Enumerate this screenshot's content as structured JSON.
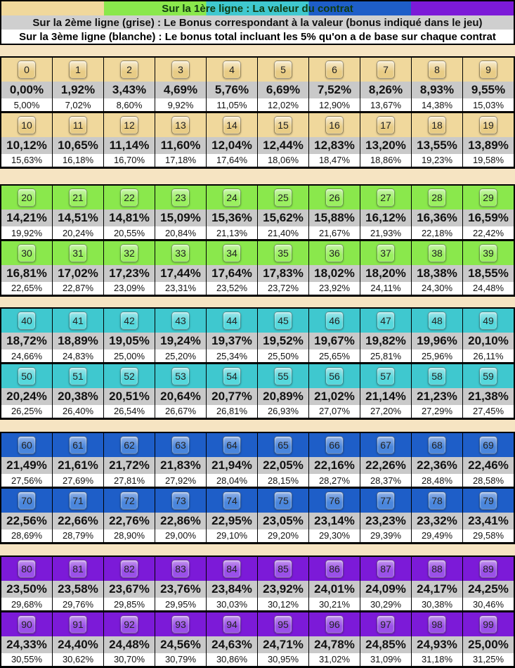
{
  "header": {
    "line1": "Sur la 1ère ligne : La valeur du contrat",
    "line2": "Sur la 2ème ligne (grise) : Le Bonus correspondant à la valeur (bonus indiqué dans le jeu)",
    "line3": "Sur la 3ème ligne (blanche) : Le bonus total incluant les 5% qu'on a de base sur chaque contrat"
  },
  "colors": [
    "#f0d89c",
    "#8ae84c",
    "#3fc8cf",
    "#1e5ec8",
    "#7c1ad8"
  ],
  "badge_colors": [
    "#e8cc86",
    "#9af060",
    "#56d8dc",
    "#4a86dc",
    "#9a50e8"
  ],
  "blocks": [
    {
      "rows": [
        {
          "values": [
            "0",
            "1",
            "2",
            "3",
            "4",
            "5",
            "6",
            "7",
            "8",
            "9"
          ],
          "bonus": [
            "0,00%",
            "1,92%",
            "3,43%",
            "4,69%",
            "5,76%",
            "6,69%",
            "7,52%",
            "8,26%",
            "8,93%",
            "9,55%"
          ],
          "total": [
            "5,00%",
            "7,02%",
            "8,60%",
            "9,92%",
            "11,05%",
            "12,02%",
            "12,90%",
            "13,67%",
            "14,38%",
            "15,03%"
          ]
        },
        {
          "values": [
            "10",
            "11",
            "12",
            "13",
            "14",
            "15",
            "16",
            "17",
            "18",
            "19"
          ],
          "bonus": [
            "10,12%",
            "10,65%",
            "11,14%",
            "11,60%",
            "12,04%",
            "12,44%",
            "12,83%",
            "13,20%",
            "13,55%",
            "13,89%"
          ],
          "total": [
            "15,63%",
            "16,18%",
            "16,70%",
            "17,18%",
            "17,64%",
            "18,06%",
            "18,47%",
            "18,86%",
            "19,23%",
            "19,58%"
          ]
        }
      ]
    },
    {
      "rows": [
        {
          "values": [
            "20",
            "21",
            "22",
            "23",
            "24",
            "25",
            "26",
            "27",
            "28",
            "29"
          ],
          "bonus": [
            "14,21%",
            "14,51%",
            "14,81%",
            "15,09%",
            "15,36%",
            "15,62%",
            "15,88%",
            "16,12%",
            "16,36%",
            "16,59%"
          ],
          "total": [
            "19,92%",
            "20,24%",
            "20,55%",
            "20,84%",
            "21,13%",
            "21,40%",
            "21,67%",
            "21,93%",
            "22,18%",
            "22,42%"
          ]
        },
        {
          "values": [
            "30",
            "31",
            "32",
            "33",
            "34",
            "35",
            "36",
            "37",
            "38",
            "39"
          ],
          "bonus": [
            "16,81%",
            "17,02%",
            "17,23%",
            "17,44%",
            "17,64%",
            "17,83%",
            "18,02%",
            "18,20%",
            "18,38%",
            "18,55%"
          ],
          "total": [
            "22,65%",
            "22,87%",
            "23,09%",
            "23,31%",
            "23,52%",
            "23,72%",
            "23,92%",
            "24,11%",
            "24,30%",
            "24,48%"
          ]
        }
      ]
    },
    {
      "rows": [
        {
          "values": [
            "40",
            "41",
            "42",
            "43",
            "44",
            "45",
            "46",
            "47",
            "48",
            "49"
          ],
          "bonus": [
            "18,72%",
            "18,89%",
            "19,05%",
            "19,24%",
            "19,37%",
            "19,52%",
            "19,67%",
            "19,82%",
            "19,96%",
            "20,10%"
          ],
          "total": [
            "24,66%",
            "24,83%",
            "25,00%",
            "25,20%",
            "25,34%",
            "25,50%",
            "25,65%",
            "25,81%",
            "25,96%",
            "26,11%"
          ]
        },
        {
          "values": [
            "50",
            "51",
            "52",
            "53",
            "54",
            "55",
            "56",
            "57",
            "58",
            "59"
          ],
          "bonus": [
            "20,24%",
            "20,38%",
            "20,51%",
            "20,64%",
            "20,77%",
            "20,89%",
            "21,02%",
            "21,14%",
            "21,23%",
            "21,38%"
          ],
          "total": [
            "26,25%",
            "26,40%",
            "26,54%",
            "26,67%",
            "26,81%",
            "26,93%",
            "27,07%",
            "27,20%",
            "27,29%",
            "27,45%"
          ]
        }
      ]
    },
    {
      "rows": [
        {
          "values": [
            "60",
            "61",
            "62",
            "63",
            "64",
            "65",
            "66",
            "67",
            "68",
            "69"
          ],
          "bonus": [
            "21,49%",
            "21,61%",
            "21,72%",
            "21,83%",
            "21,94%",
            "22,05%",
            "22,16%",
            "22,26%",
            "22,36%",
            "22,46%"
          ],
          "total": [
            "27,56%",
            "27,69%",
            "27,81%",
            "27,92%",
            "28,04%",
            "28,15%",
            "28,27%",
            "28,37%",
            "28,48%",
            "28,58%"
          ]
        },
        {
          "values": [
            "70",
            "71",
            "72",
            "73",
            "74",
            "75",
            "76",
            "77",
            "78",
            "79"
          ],
          "bonus": [
            "22,56%",
            "22,66%",
            "22,76%",
            "22,86%",
            "22,95%",
            "23,05%",
            "23,14%",
            "23,23%",
            "23,32%",
            "23,41%"
          ],
          "total": [
            "28,69%",
            "28,79%",
            "28,90%",
            "29,00%",
            "29,10%",
            "29,20%",
            "29,30%",
            "29,39%",
            "29,49%",
            "29,58%"
          ]
        }
      ]
    },
    {
      "rows": [
        {
          "values": [
            "80",
            "81",
            "82",
            "83",
            "84",
            "85",
            "86",
            "87",
            "88",
            "89"
          ],
          "bonus": [
            "23,50%",
            "23,58%",
            "23,67%",
            "23,76%",
            "23,84%",
            "23,92%",
            "24,01%",
            "24,09%",
            "24,17%",
            "24,25%"
          ],
          "total": [
            "29,68%",
            "29,76%",
            "29,85%",
            "29,95%",
            "30,03%",
            "30,12%",
            "30,21%",
            "30,29%",
            "30,38%",
            "30,46%"
          ]
        },
        {
          "values": [
            "90",
            "91",
            "92",
            "93",
            "94",
            "95",
            "96",
            "97",
            "98",
            "99"
          ],
          "bonus": [
            "24,33%",
            "24,40%",
            "24,48%",
            "24,56%",
            "24,63%",
            "24,71%",
            "24,78%",
            "24,85%",
            "24,93%",
            "25,00%"
          ],
          "total": [
            "30,55%",
            "30,62%",
            "30,70%",
            "30,79%",
            "30,86%",
            "30,95%",
            "31,02%",
            "31,09%",
            "31,18%",
            "31,25%"
          ]
        }
      ]
    }
  ]
}
